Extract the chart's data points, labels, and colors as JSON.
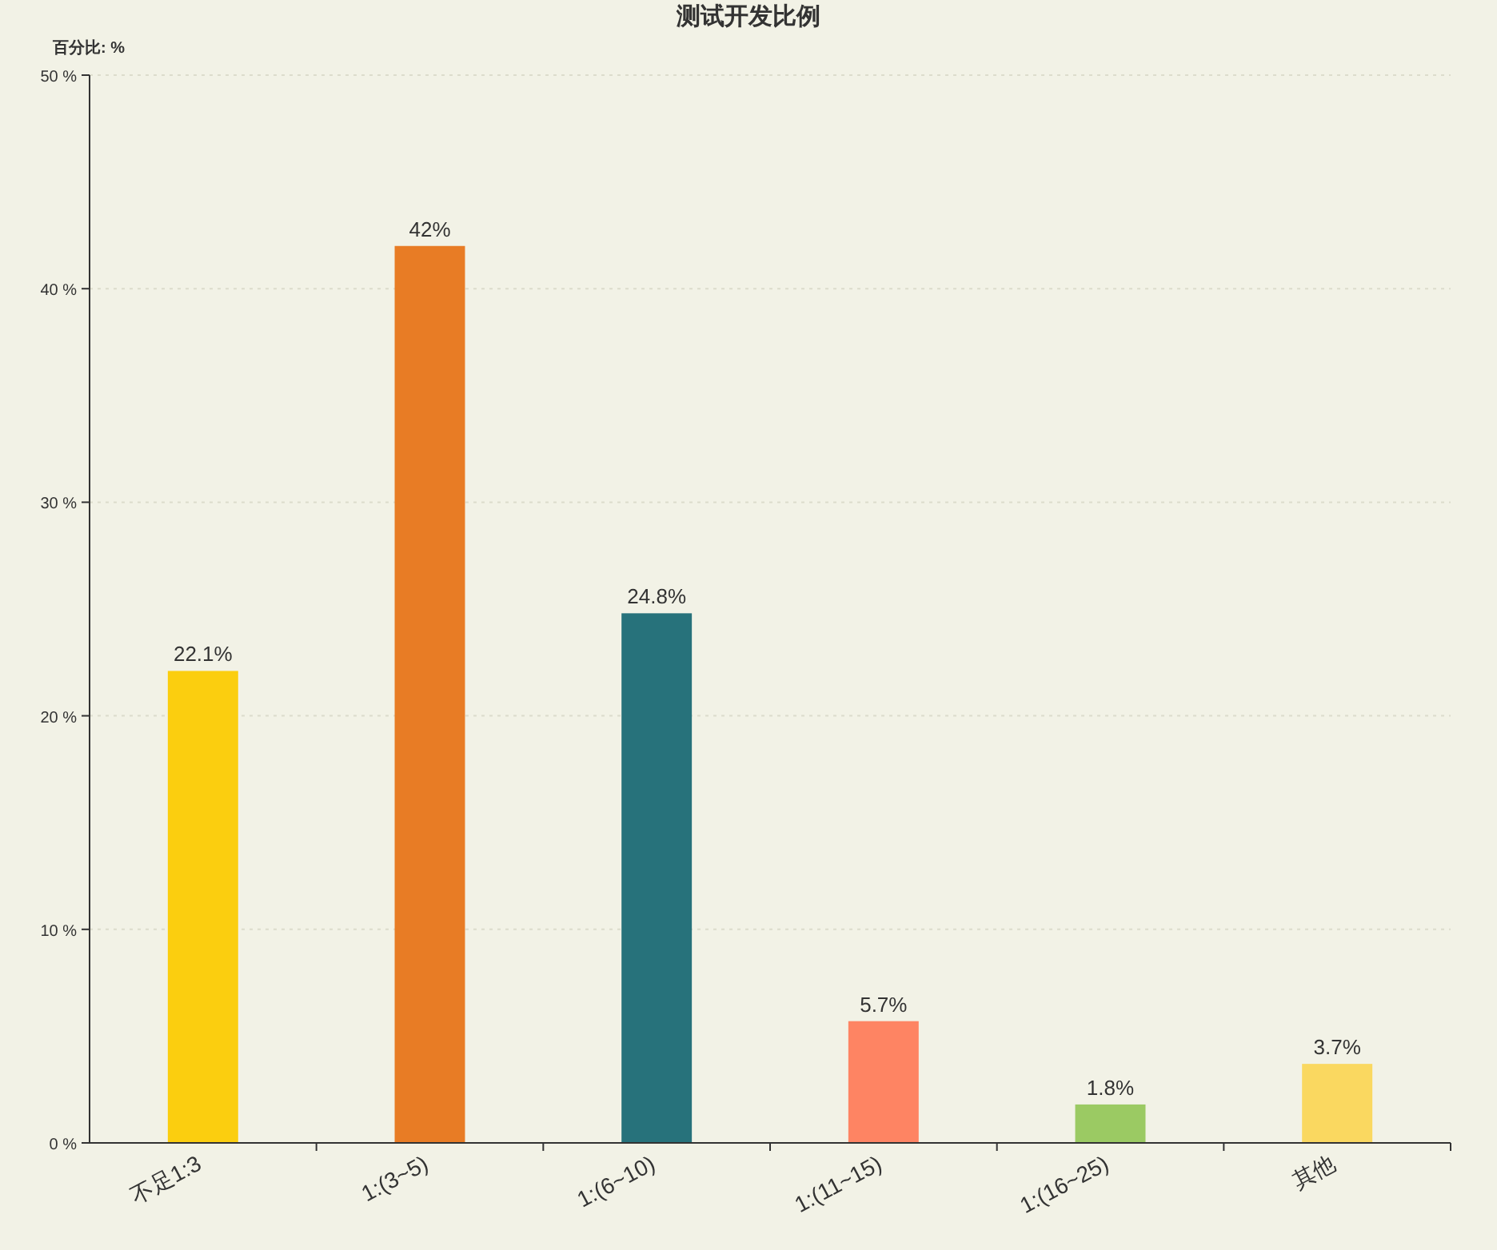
{
  "chart_data": {
    "type": "bar",
    "title": "测试开发比例",
    "ylabel": "百分比: %",
    "categories": [
      "不足1:3",
      "1:(3~5)",
      "1:(6~10)",
      "1:(11~15)",
      "1:(16~25)",
      "其他"
    ],
    "values": [
      22.1,
      42,
      24.8,
      5.7,
      1.8,
      3.7
    ],
    "colors": [
      "#fbce0f",
      "#e87c25",
      "#27727b",
      "#fe8463",
      "#9bca63",
      "#fad860"
    ],
    "value_labels": [
      "22.1%",
      "42%",
      "24.8%",
      "5.7%",
      "1.8%",
      "3.7%"
    ],
    "ylim": [
      0,
      50
    ],
    "yticks": [
      {
        "value": 0,
        "label": "0 %"
      },
      {
        "value": 10,
        "label": "10 %"
      },
      {
        "value": 20,
        "label": "20 %"
      },
      {
        "value": 30,
        "label": "30 %"
      },
      {
        "value": 40,
        "label": "40 %"
      },
      {
        "value": 50,
        "label": "50 %"
      }
    ],
    "grid": "y"
  }
}
